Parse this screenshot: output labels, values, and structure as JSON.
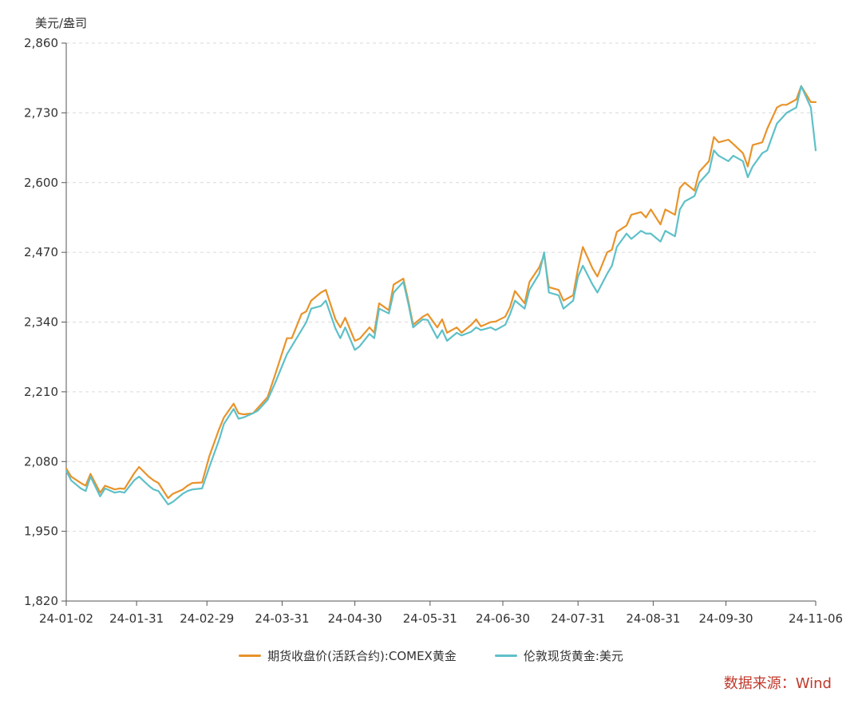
{
  "chart_data": {
    "type": "line",
    "unit": "美元/盎司",
    "ylim": [
      1820,
      2860
    ],
    "y_ticks": [
      "2,860",
      "2,730",
      "2,600",
      "2,470",
      "2,340",
      "2,210",
      "2,080",
      "1,950",
      "1,820"
    ],
    "y_tick_values": [
      2860,
      2730,
      2600,
      2470,
      2340,
      2210,
      2080,
      1950,
      1820
    ],
    "x_ticks": [
      "24-01-02",
      "24-01-31",
      "24-02-29",
      "24-03-31",
      "24-04-30",
      "24-05-31",
      "24-06-30",
      "24-07-31",
      "24-08-31",
      "24-09-30",
      "24-11-06"
    ],
    "x_tick_values": [
      "2024-01-02",
      "2024-01-31",
      "2024-02-29",
      "2024-03-31",
      "2024-04-30",
      "2024-05-31",
      "2024-06-30",
      "2024-07-31",
      "2024-08-31",
      "2024-09-30",
      "2024-11-06"
    ],
    "grid": "horizontal-dashed",
    "legend_position": "bottom",
    "source": "数据来源：Wind",
    "colors": {
      "comex": "#E8932A",
      "london": "#5EC0C8",
      "source": "#C0392B"
    },
    "series": [
      {
        "name": "期货收盘价(活跃合约):COMEX黄金",
        "color": "#E8932A",
        "x": [
          "2024-01-02",
          "2024-01-04",
          "2024-01-08",
          "2024-01-10",
          "2024-01-12",
          "2024-01-16",
          "2024-01-18",
          "2024-01-22",
          "2024-01-24",
          "2024-01-26",
          "2024-01-30",
          "2024-02-01",
          "2024-02-05",
          "2024-02-07",
          "2024-02-09",
          "2024-02-13",
          "2024-02-15",
          "2024-02-19",
          "2024-02-21",
          "2024-02-23",
          "2024-02-27",
          "2024-03-01",
          "2024-03-05",
          "2024-03-07",
          "2024-03-11",
          "2024-03-13",
          "2024-03-15",
          "2024-03-19",
          "2024-03-21",
          "2024-03-25",
          "2024-03-28",
          "2024-04-02",
          "2024-04-04",
          "2024-04-08",
          "2024-04-10",
          "2024-04-12",
          "2024-04-16",
          "2024-04-18",
          "2024-04-22",
          "2024-04-24",
          "2024-04-26",
          "2024-04-30",
          "2024-05-02",
          "2024-05-06",
          "2024-05-08",
          "2024-05-10",
          "2024-05-14",
          "2024-05-16",
          "2024-05-20",
          "2024-05-22",
          "2024-05-24",
          "2024-05-28",
          "2024-05-30",
          "2024-06-03",
          "2024-06-05",
          "2024-06-07",
          "2024-06-11",
          "2024-06-13",
          "2024-06-17",
          "2024-06-19",
          "2024-06-21",
          "2024-06-25",
          "2024-06-27",
          "2024-07-01",
          "2024-07-03",
          "2024-07-05",
          "2024-07-09",
          "2024-07-11",
          "2024-07-15",
          "2024-07-17",
          "2024-07-19",
          "2024-07-23",
          "2024-07-25",
          "2024-07-29",
          "2024-07-31",
          "2024-08-02",
          "2024-08-06",
          "2024-08-08",
          "2024-08-12",
          "2024-08-14",
          "2024-08-16",
          "2024-08-20",
          "2024-08-22",
          "2024-08-26",
          "2024-08-28",
          "2024-08-30",
          "2024-09-03",
          "2024-09-05",
          "2024-09-09",
          "2024-09-11",
          "2024-09-13",
          "2024-09-17",
          "2024-09-19",
          "2024-09-23",
          "2024-09-25",
          "2024-09-27",
          "2024-10-01",
          "2024-10-03",
          "2024-10-07",
          "2024-10-09",
          "2024-10-11",
          "2024-10-15",
          "2024-10-17",
          "2024-10-21",
          "2024-10-23",
          "2024-10-25",
          "2024-10-29",
          "2024-10-31",
          "2024-11-04",
          "2024-11-06"
        ],
        "values": [
          2067,
          2052,
          2040,
          2035,
          2057,
          2022,
          2035,
          2028,
          2030,
          2029,
          2058,
          2070,
          2052,
          2045,
          2040,
          2012,
          2020,
          2028,
          2035,
          2040,
          2041,
          2090,
          2140,
          2162,
          2188,
          2170,
          2168,
          2170,
          2180,
          2200,
          2240,
          2310,
          2310,
          2355,
          2360,
          2380,
          2395,
          2400,
          2345,
          2330,
          2348,
          2305,
          2309,
          2330,
          2320,
          2375,
          2362,
          2410,
          2421,
          2380,
          2335,
          2350,
          2355,
          2330,
          2345,
          2320,
          2330,
          2320,
          2335,
          2345,
          2332,
          2340,
          2341,
          2350,
          2368,
          2398,
          2375,
          2415,
          2442,
          2465,
          2405,
          2400,
          2380,
          2390,
          2440,
          2480,
          2440,
          2425,
          2470,
          2475,
          2508,
          2520,
          2540,
          2545,
          2535,
          2550,
          2522,
          2550,
          2540,
          2590,
          2600,
          2585,
          2620,
          2640,
          2685,
          2675,
          2680,
          2672,
          2655,
          2630,
          2670,
          2675,
          2700,
          2740,
          2745,
          2745,
          2755,
          2780,
          2750,
          2750
        ]
      },
      {
        "name": "伦敦现货黄金:美元",
        "color": "#5EC0C8",
        "x": [
          "2024-01-02",
          "2024-01-04",
          "2024-01-08",
          "2024-01-10",
          "2024-01-12",
          "2024-01-16",
          "2024-01-18",
          "2024-01-22",
          "2024-01-24",
          "2024-01-26",
          "2024-01-30",
          "2024-02-01",
          "2024-02-05",
          "2024-02-07",
          "2024-02-09",
          "2024-02-13",
          "2024-02-15",
          "2024-02-19",
          "2024-02-21",
          "2024-02-23",
          "2024-02-27",
          "2024-03-01",
          "2024-03-05",
          "2024-03-07",
          "2024-03-11",
          "2024-03-13",
          "2024-03-15",
          "2024-03-19",
          "2024-03-21",
          "2024-03-25",
          "2024-03-28",
          "2024-04-02",
          "2024-04-04",
          "2024-04-08",
          "2024-04-10",
          "2024-04-12",
          "2024-04-16",
          "2024-04-18",
          "2024-04-22",
          "2024-04-24",
          "2024-04-26",
          "2024-04-30",
          "2024-05-02",
          "2024-05-06",
          "2024-05-08",
          "2024-05-10",
          "2024-05-14",
          "2024-05-16",
          "2024-05-20",
          "2024-05-22",
          "2024-05-24",
          "2024-05-28",
          "2024-05-30",
          "2024-06-03",
          "2024-06-05",
          "2024-06-07",
          "2024-06-11",
          "2024-06-13",
          "2024-06-17",
          "2024-06-19",
          "2024-06-21",
          "2024-06-25",
          "2024-06-27",
          "2024-07-01",
          "2024-07-03",
          "2024-07-05",
          "2024-07-09",
          "2024-07-11",
          "2024-07-15",
          "2024-07-17",
          "2024-07-19",
          "2024-07-23",
          "2024-07-25",
          "2024-07-29",
          "2024-07-31",
          "2024-08-02",
          "2024-08-06",
          "2024-08-08",
          "2024-08-12",
          "2024-08-14",
          "2024-08-16",
          "2024-08-20",
          "2024-08-22",
          "2024-08-26",
          "2024-08-28",
          "2024-08-30",
          "2024-09-03",
          "2024-09-05",
          "2024-09-09",
          "2024-09-11",
          "2024-09-13",
          "2024-09-17",
          "2024-09-19",
          "2024-09-23",
          "2024-09-25",
          "2024-09-27",
          "2024-10-01",
          "2024-10-03",
          "2024-10-07",
          "2024-10-09",
          "2024-10-11",
          "2024-10-15",
          "2024-10-17",
          "2024-10-21",
          "2024-10-23",
          "2024-10-25",
          "2024-10-29",
          "2024-10-31",
          "2024-11-04",
          "2024-11-06"
        ],
        "values": [
          2063,
          2045,
          2030,
          2025,
          2052,
          2015,
          2030,
          2022,
          2024,
          2022,
          2045,
          2052,
          2035,
          2028,
          2025,
          2000,
          2005,
          2020,
          2025,
          2028,
          2030,
          2070,
          2120,
          2150,
          2178,
          2160,
          2162,
          2170,
          2175,
          2195,
          2225,
          2280,
          2295,
          2325,
          2340,
          2365,
          2370,
          2380,
          2328,
          2310,
          2330,
          2288,
          2295,
          2318,
          2310,
          2365,
          2356,
          2395,
          2415,
          2375,
          2330,
          2345,
          2344,
          2310,
          2325,
          2305,
          2320,
          2315,
          2322,
          2330,
          2325,
          2330,
          2325,
          2335,
          2355,
          2380,
          2365,
          2400,
          2430,
          2470,
          2395,
          2390,
          2365,
          2380,
          2425,
          2445,
          2410,
          2395,
          2430,
          2445,
          2480,
          2505,
          2495,
          2510,
          2505,
          2505,
          2490,
          2510,
          2500,
          2550,
          2565,
          2575,
          2600,
          2620,
          2660,
          2650,
          2640,
          2650,
          2640,
          2610,
          2630,
          2655,
          2660,
          2710,
          2720,
          2730,
          2740,
          2780,
          2740,
          2660
        ]
      }
    ]
  }
}
